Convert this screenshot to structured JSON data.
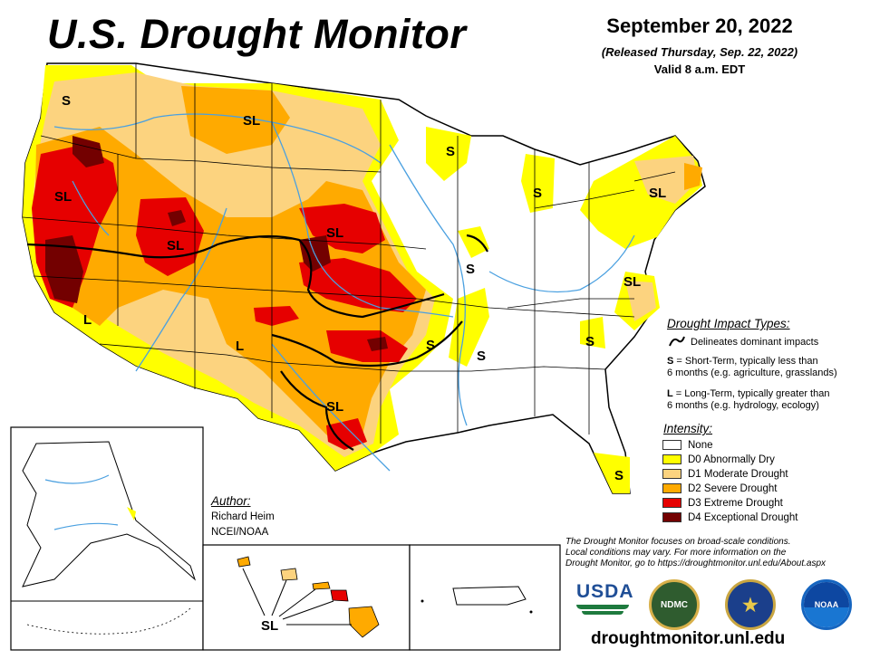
{
  "header": {
    "title": "U.S. Drought Monitor",
    "date": "September 20, 2022",
    "released": "(Released Thursday, Sep. 22, 2022)",
    "valid": "Valid 8 a.m. EDT"
  },
  "colors": {
    "none": "#ffffff",
    "d0": "#ffff00",
    "d1": "#fcd37f",
    "d2": "#ffaa00",
    "d3": "#e60000",
    "d4": "#730000",
    "rivers": "#4aa0e0",
    "borders": "#000000"
  },
  "impact_types": {
    "heading": "Drought Impact Types:",
    "delineates": "Delineates dominant impacts",
    "short_key": "S",
    "short_text_1": "= Short-Term, typically less than",
    "short_text_2": "6 months (e.g. agriculture, grasslands)",
    "long_key": "L",
    "long_text_1": "= Long-Term, typically greater than",
    "long_text_2": "6 months (e.g. hydrology, ecology)"
  },
  "intensity": {
    "heading": "Intensity:",
    "items": [
      {
        "label": "None",
        "color": "#ffffff"
      },
      {
        "label": "D0 Abnormally Dry",
        "color": "#ffff00"
      },
      {
        "label": "D1 Moderate Drought",
        "color": "#fcd37f"
      },
      {
        "label": "D2 Severe Drought",
        "color": "#ffaa00"
      },
      {
        "label": "D3 Extreme Drought",
        "color": "#e60000"
      },
      {
        "label": "D4 Exceptional Drought",
        "color": "#730000"
      }
    ]
  },
  "author": {
    "heading": "Author:",
    "name": "Richard Heim",
    "org": "NCEI/NOAA"
  },
  "map_labels": {
    "wa": "S",
    "mt": "SL",
    "ca_n": "SL",
    "ut": "SL",
    "nv": "L",
    "ne": "SL",
    "az": "L",
    "tx": "SL",
    "mn": "S",
    "mi": "S",
    "il": "S",
    "ne_us": "SL",
    "va": "SL",
    "ar": "S",
    "ms": "S",
    "ga": "S",
    "fl": "S",
    "hi": "SL"
  },
  "disclaimer": {
    "line1": "The Drought Monitor focuses on broad-scale conditions.",
    "line2": "Local conditions may vary. For more information on the",
    "line3": "Drought Monitor, go to https://droughtmonitor.unl.edu/About.aspx"
  },
  "logos": {
    "usda": "USDA",
    "ndmc": "NDMC",
    "noaa": "NOAA"
  },
  "url": "droughtmonitor.unl.edu"
}
